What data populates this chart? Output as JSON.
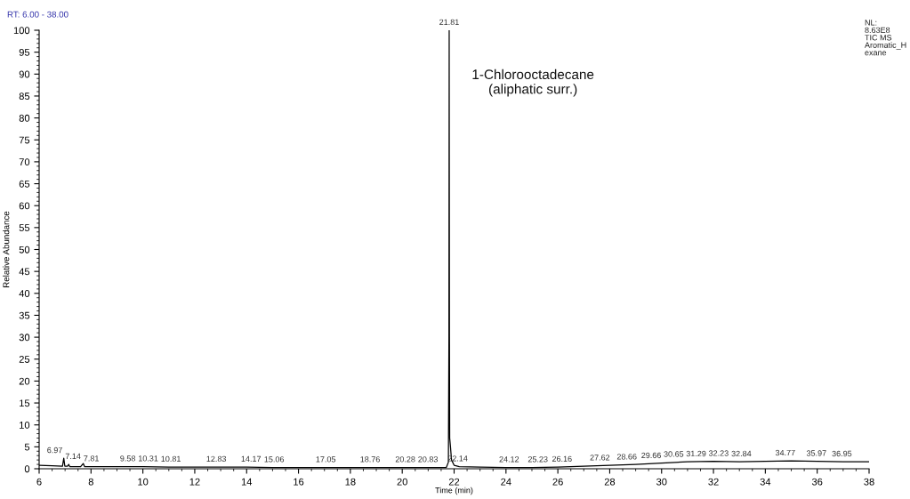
{
  "chart_data": {
    "type": "line",
    "xlabel": "Time (min)",
    "ylabel": "Relative Abundance",
    "x": [
      6.0,
      6.5,
      6.9,
      6.95,
      6.99,
      7.1,
      7.14,
      7.18,
      7.6,
      7.7,
      7.75,
      8,
      9,
      10,
      11,
      12,
      13,
      14,
      15,
      16,
      17,
      18,
      19,
      20,
      21,
      21.7,
      21.78,
      21.8,
      21.81,
      21.82,
      21.83,
      21.86,
      21.9,
      22.0,
      22.2,
      23,
      24,
      25,
      26,
      27,
      28,
      29,
      30,
      31,
      32,
      33,
      34,
      35,
      36,
      37,
      38
    ],
    "series": [
      {
        "color": "#000000",
        "values": [
          0.8,
          0.7,
          0.6,
          2.4,
          0.6,
          0.6,
          1.0,
          0.5,
          0.5,
          1.2,
          0.5,
          0.5,
          0.5,
          0.5,
          0.4,
          0.4,
          0.4,
          0.4,
          0.3,
          0.3,
          0.3,
          0.3,
          0.3,
          0.3,
          0.3,
          0.3,
          1.5,
          30,
          100,
          30,
          7,
          5,
          2,
          0.8,
          0.5,
          0.4,
          0.3,
          0.3,
          0.4,
          0.6,
          0.8,
          1.0,
          1.3,
          1.6,
          1.7,
          1.6,
          1.7,
          1.8,
          1.7,
          1.6,
          1.6
        ]
      }
    ],
    "xlim": [
      6,
      38
    ],
    "xticks": [
      6,
      8,
      10,
      12,
      14,
      16,
      18,
      20,
      22,
      24,
      26,
      28,
      30,
      32,
      34,
      36,
      38
    ],
    "ylim": [
      0,
      100
    ],
    "yticks": [
      0,
      5,
      10,
      15,
      20,
      25,
      30,
      35,
      40,
      45,
      50,
      55,
      60,
      65,
      70,
      75,
      80,
      85,
      90,
      95,
      100
    ],
    "grid": false,
    "legend": false,
    "marker": "none",
    "line_style": "solid",
    "annotations": [
      {
        "text": "21.81",
        "x": 21.81,
        "y": 100
      },
      {
        "text": "6.97",
        "x": 6.97,
        "y": 2.4
      },
      {
        "text": "7.14",
        "x": 7.14,
        "y": 1.0
      },
      {
        "text": "7.81",
        "x": 7.81,
        "y": 0.5
      },
      {
        "text": "9.58",
        "x": 9.58,
        "y": 0.5
      },
      {
        "text": "10.31",
        "x": 10.31,
        "y": 0.5
      },
      {
        "text": "10.81",
        "x": 10.81,
        "y": 0.4
      },
      {
        "text": "12.83",
        "x": 12.83,
        "y": 0.4
      },
      {
        "text": "14.17",
        "x": 14.17,
        "y": 0.4
      },
      {
        "text": "15.06",
        "x": 15.06,
        "y": 0.3
      },
      {
        "text": "17.05",
        "x": 17.05,
        "y": 0.3
      },
      {
        "text": "18.76",
        "x": 18.76,
        "y": 0.3
      },
      {
        "text": "20.28",
        "x": 20.28,
        "y": 0.3
      },
      {
        "text": "20.83",
        "x": 20.83,
        "y": 0.3
      },
      {
        "text": "22.14",
        "x": 22.14,
        "y": 0.5
      },
      {
        "text": "24.12",
        "x": 24.12,
        "y": 0.3
      },
      {
        "text": "25.23",
        "x": 25.23,
        "y": 0.3
      },
      {
        "text": "26.16",
        "x": 26.16,
        "y": 0.4
      },
      {
        "text": "27.62",
        "x": 27.62,
        "y": 0.7
      },
      {
        "text": "28.66",
        "x": 28.66,
        "y": 0.9
      },
      {
        "text": "29.66",
        "x": 29.66,
        "y": 1.2
      },
      {
        "text": "30.65",
        "x": 30.65,
        "y": 1.5
      },
      {
        "text": "31.29",
        "x": 31.29,
        "y": 1.6
      },
      {
        "text": "32.23",
        "x": 32.23,
        "y": 1.7
      },
      {
        "text": "32.84",
        "x": 32.84,
        "y": 1.6
      },
      {
        "text": "34.77",
        "x": 34.77,
        "y": 1.8
      },
      {
        "text": "35.97",
        "x": 35.97,
        "y": 1.7
      },
      {
        "text": "36.95",
        "x": 36.95,
        "y": 1.6
      },
      "1-Chlorooctadecane\n(aliphatic surr.)",
      "RT: 6.00 - 38.00",
      "NL:\n8.63E8\nTIC MS\nAromatic_H\nexane"
    ]
  }
}
